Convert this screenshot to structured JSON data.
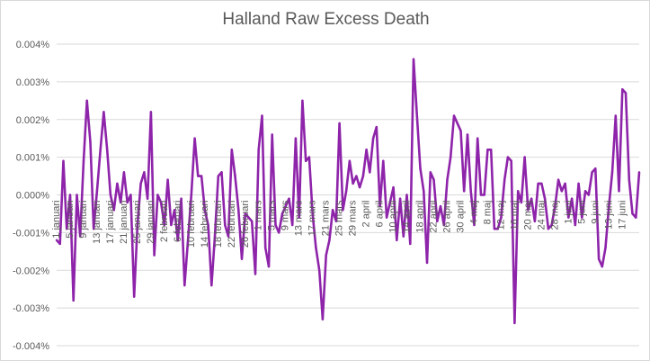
{
  "chart_data": {
    "type": "line",
    "title": "Halland Raw Excess Death",
    "xlabel": "",
    "ylabel": "",
    "ylim": [
      -0.004,
      0.004
    ],
    "grid": true,
    "legend": "none",
    "line_color": "#8E24AA",
    "y_ticks": [
      "0.004%",
      "0.003%",
      "0.002%",
      "0.001%",
      "0.000%",
      "-0.001%",
      "-0.002%",
      "-0.003%",
      "-0.004%"
    ],
    "x_tick_labels": [
      "1 januari",
      "5 januari",
      "9 januari",
      "13 januari",
      "17 januari",
      "21 januari",
      "25 januari",
      "29 januari",
      "2 februari",
      "6 februari",
      "10 februari",
      "14 februari",
      "18 februari",
      "22 februari",
      "26 februari",
      "1 mars",
      "5 mars",
      "9 mars",
      "13 mars",
      "17 mars",
      "21 mars",
      "25 mars",
      "29 mars",
      "2 april",
      "6 april",
      "10 april",
      "14 april",
      "18 april",
      "22 april",
      "26 april",
      "30 april",
      "4 maj",
      "8 maj",
      "12 maj",
      "16 maj",
      "20 maj",
      "24 maj",
      "28 maj",
      "1 juni",
      "5 juni",
      "9 juni",
      "13 juni",
      "17 juni"
    ],
    "series": [
      {
        "values": [
          -0.0012,
          -0.0013,
          0.0009,
          -0.0009,
          0.0,
          -0.0028,
          0.0,
          -0.0011,
          0.0009,
          0.0025,
          0.0014,
          -0.0009,
          0.0001,
          0.0012,
          0.0022,
          0.0012,
          0.0,
          -0.0004,
          0.0003,
          -0.0002,
          0.0006,
          -0.0002,
          0.0,
          -0.0027,
          -0.0008,
          0.0003,
          0.0006,
          -0.0001,
          0.0022,
          -0.0016,
          0.0,
          -0.0002,
          -0.0008,
          0.0004,
          -0.0008,
          -0.0004,
          -0.0012,
          -0.0001,
          -0.0024,
          -0.0012,
          0.0,
          0.0015,
          0.0005,
          0.0005,
          -0.0004,
          -0.0008,
          -0.0024,
          -0.0011,
          0.0005,
          0.0006,
          -0.0008,
          -0.0011,
          0.0012,
          0.0005,
          -0.0004,
          -0.0017,
          -0.0005,
          -0.0006,
          -0.0007,
          -0.0021,
          0.0012,
          0.0021,
          -0.0014,
          -0.0019,
          0.0016,
          -0.0008,
          -0.001,
          -0.0005,
          -0.0003,
          -0.0001,
          -0.0008,
          0.0015,
          -0.0006,
          0.0025,
          0.0009,
          0.001,
          -0.0005,
          -0.0014,
          -0.002,
          -0.0033,
          -0.0016,
          -0.0012,
          -0.0004,
          -0.0007,
          0.0019,
          -0.0004,
          0.0001,
          0.0009,
          0.0003,
          0.0005,
          0.0002,
          0.0005,
          0.0012,
          0.0006,
          0.0015,
          0.0018,
          -0.0003,
          0.0009,
          -0.0006,
          -0.0002,
          0.0002,
          -0.0012,
          -0.0001,
          -0.0011,
          0.0,
          -0.0013,
          0.0036,
          0.0021,
          0.0007,
          0.0001,
          -0.0018,
          0.0006,
          0.0004,
          -0.0007,
          -0.0003,
          -0.0008,
          0.0004,
          0.001,
          0.0021,
          0.0019,
          0.0017,
          0.0001,
          0.0016,
          0.0001,
          -0.0008,
          0.0015,
          0.0,
          0.0,
          0.0012,
          0.0012,
          -0.0009,
          -0.0009,
          -0.0006,
          0.0004,
          0.001,
          0.0009,
          -0.0034,
          0.0001,
          -0.0002,
          0.001,
          -0.0004,
          -0.0001,
          -0.0007,
          0.0003,
          0.0003,
          -0.0001,
          -0.0009,
          -0.0008,
          -0.0003,
          0.0004,
          0.0001,
          0.0003,
          -0.0006,
          -0.0001,
          -0.0008,
          0.0003,
          -0.0006,
          0.0001,
          0.0,
          0.0006,
          0.0007,
          -0.0017,
          -0.0019,
          -0.0014,
          -0.0003,
          0.0006,
          0.0021,
          0.0001,
          0.0028,
          0.0027,
          0.0004,
          -0.0005,
          -0.0006,
          0.0006
        ]
      }
    ]
  }
}
